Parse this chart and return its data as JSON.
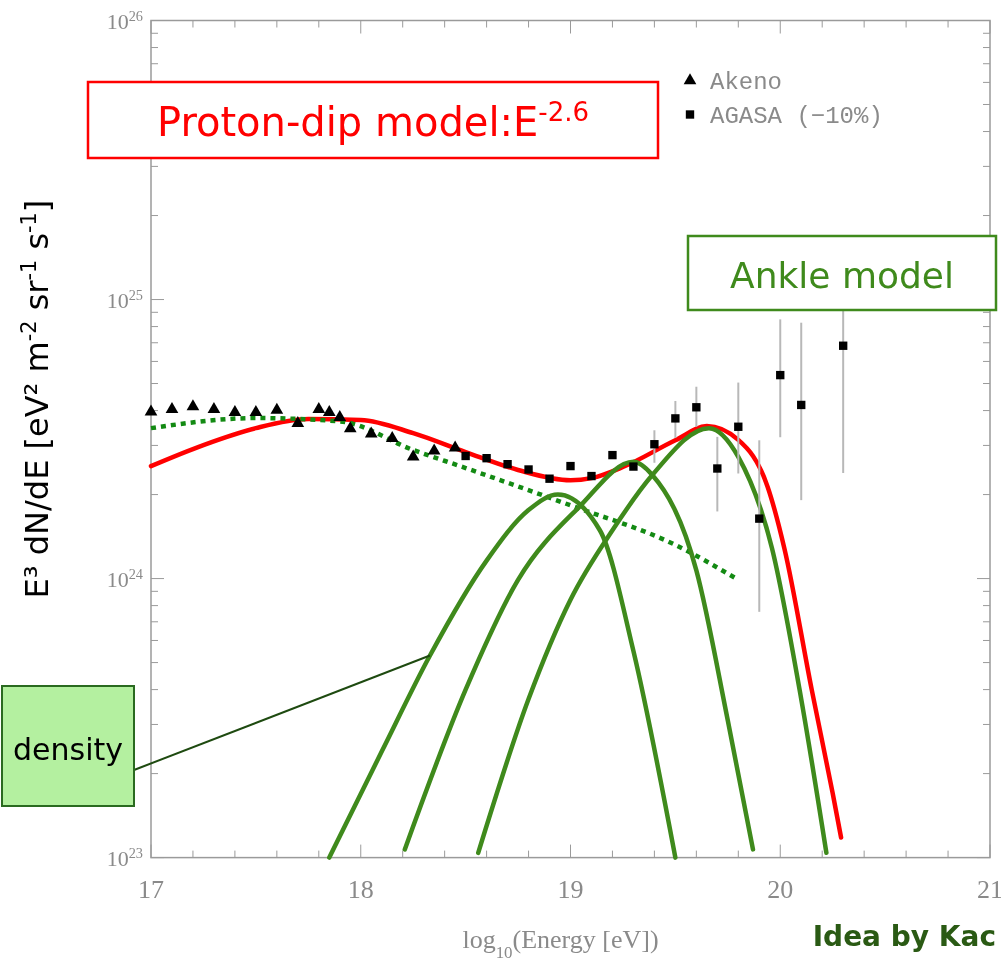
{
  "chart_data": {
    "type": "scatter",
    "xlabel": "log$_{10}$(Energy [eV])",
    "ylabel": "E³ dN/dE [eV² m$^{-2}$ sr$^{-1}$ s$^{-1}$]",
    "log": "y",
    "xlim": [
      17,
      21
    ],
    "ylim": [
      1e+23,
      1e+26
    ],
    "xticks": [
      17,
      {
        "value": 17.2,
        "label": null
      },
      {
        "value": 17.4,
        "label": null
      },
      {
        "value": 17.6,
        "label": null
      },
      {
        "value": 17.8,
        "label": null
      },
      18,
      {
        "value": 18.2,
        "label": null
      },
      {
        "value": 18.4,
        "label": null
      },
      {
        "value": 18.6,
        "label": null
      },
      {
        "value": 18.8,
        "label": null
      },
      19,
      {
        "value": 19.2,
        "label": null
      },
      {
        "value": 19.4,
        "label": null
      },
      {
        "value": 19.6,
        "label": null
      },
      {
        "value": 19.8,
        "label": null
      },
      20,
      {
        "value": 20.2,
        "label": null
      },
      {
        "value": 20.4,
        "label": null
      },
      {
        "value": 20.6,
        "label": null
      },
      {
        "value": 20.8,
        "label": null
      },
      21
    ],
    "yticks": [
      {
        "value": 1e+23,
        "label": "10$^{23}$"
      },
      {
        "value": 2e+23,
        "label": null
      },
      {
        "value": 3e+23,
        "label": null
      },
      {
        "value": 4e+23,
        "label": null
      },
      {
        "value": 5e+23,
        "label": null
      },
      {
        "value": 6e+23,
        "label": null
      },
      {
        "value": 7e+23,
        "label": null
      },
      {
        "value": 8e+23,
        "label": null
      },
      {
        "value": 9e+23,
        "label": null
      },
      {
        "value": 1e+24,
        "label": "10$^{24}$"
      },
      {
        "value": 2e+24,
        "label": null
      },
      {
        "value": 3e+24,
        "label": null
      },
      {
        "value": 4e+24,
        "label": null
      },
      {
        "value": 5e+24,
        "label": null
      },
      {
        "value": 6e+24,
        "label": null
      },
      {
        "value": 7e+24,
        "label": null
      },
      {
        "value": 8e+24,
        "label": null
      },
      {
        "value": 9e+24,
        "label": null
      },
      {
        "value": 1e+25,
        "label": "10$^{25}$"
      },
      {
        "value": 2e+25,
        "label": null
      },
      {
        "value": 3e+25,
        "label": null
      },
      {
        "value": 4e+25,
        "label": null
      },
      {
        "value": 5e+25,
        "label": null
      },
      {
        "value": 6e+25,
        "label": null
      },
      {
        "value": 7e+25,
        "label": null
      },
      {
        "value": 8e+25,
        "label": null
      },
      {
        "value": 9e+25,
        "label": null
      },
      {
        "value": 1e+26,
        "label": "10$^{26}$"
      }
    ],
    "legend": "top right",
    "series": [
      {
        "type": "line",
        "color": "#ff0000",
        "line_style": "solid",
        "marker": "none",
        "x": [
          17.0,
          17.25,
          17.5,
          17.75,
          18.0,
          18.25,
          18.5,
          18.75,
          19.0,
          19.1,
          19.25,
          19.5,
          19.65,
          19.8,
          19.94,
          20.02,
          20.15,
          20.25,
          20.29
        ],
        "values": [
          2.53e+24,
          3.01e+24,
          3.46e+24,
          3.73e+24,
          3.7e+24,
          3.32e+24,
          2.84e+24,
          2.45e+24,
          2.25e+24,
          2.29e+24,
          2.51e+24,
          3.13e+24,
          3.52e+24,
          3.14e+24,
          2.13e+24,
          1.28e+24,
          4e+23,
          1.7e+23,
          1.18e+23
        ]
      },
      {
        "type": "line",
        "color": "#138a13",
        "line_style": "dotted",
        "marker": "none",
        "x": [
          17.0,
          17.5,
          17.9,
          18.25,
          18.5,
          19.0,
          19.5,
          19.8
        ],
        "values": [
          3.46e+24,
          3.76e+24,
          3.66e+24,
          2.89e+24,
          2.49e+24,
          1.83e+24,
          1.32e+24,
          9.9e+23
        ]
      },
      {
        "type": "line",
        "color": "#3f8a1c",
        "line_style": "solid",
        "marker": "none",
        "x": [
          17.85,
          18.1,
          18.33,
          18.6,
          18.8,
          18.94,
          19.14,
          19.3,
          19.5
        ],
        "values": [
          1e+23,
          2.4e+23,
          5.3e+23,
          1.16e+24,
          1.76e+24,
          2e+24,
          1.49e+24,
          5.5e+23,
          1e+23
        ]
      },
      {
        "type": "line",
        "color": "#3f8a1c",
        "line_style": "solid",
        "marker": "none",
        "x": [
          18.21,
          18.5,
          18.75,
          19.04,
          19.3,
          19.39,
          19.6,
          19.75,
          19.87
        ],
        "values": [
          1.07e+23,
          4e+23,
          9.9e+23,
          1.8e+24,
          2.62e+24,
          2.35e+24,
          1.07e+24,
          3.1e+23,
          1.07e+23
        ]
      },
      {
        "type": "line",
        "color": "#3f8a1c",
        "line_style": "solid",
        "marker": "none",
        "x": [
          18.56,
          18.8,
          19.0,
          19.2,
          19.39,
          19.66,
          19.8,
          19.96,
          20.1,
          20.22
        ],
        "values": [
          1.04e+23,
          3.7e+23,
          8.4e+23,
          1.49e+24,
          2.35e+24,
          3.46e+24,
          2.73e+24,
          1.29e+24,
          3.7e+23,
          1.04e+23
        ]
      },
      {
        "name": "Akeno",
        "color": "#000000",
        "marker": "triangle",
        "x": [
          17.0,
          17.1,
          17.2,
          17.3,
          17.4,
          17.5,
          17.6,
          17.7,
          17.8,
          17.85,
          17.9,
          17.95,
          18.05,
          18.15,
          18.25,
          18.35,
          18.45
        ],
        "values": [
          3.96e+24,
          4.04e+24,
          4.13e+24,
          4.04e+24,
          3.94e+24,
          3.94e+24,
          4.02e+24,
          3.6e+24,
          4.04e+24,
          3.94e+24,
          3.78e+24,
          3.45e+24,
          3.3e+24,
          3.18e+24,
          2.73e+24,
          2.87e+24,
          2.94e+24
        ]
      },
      {
        "name": "AGASA (−10%)",
        "color": "#000000",
        "marker": "square",
        "x": [
          18.5,
          18.6,
          18.7,
          18.8,
          18.9,
          19.0,
          19.1,
          19.2,
          19.3,
          19.4,
          19.5,
          19.6,
          19.7,
          19.8,
          19.9,
          20.0,
          20.1,
          20.3
        ],
        "values": [
          2.75e+24,
          2.7e+24,
          2.57e+24,
          2.46e+24,
          2.28e+24,
          2.53e+24,
          2.33e+24,
          2.77e+24,
          2.52e+24,
          3.03e+24,
          3.75e+24,
          4.11e+24,
          2.48e+24,
          3.5e+24,
          1.64e+24,
          5.36e+24,
          4.19e+24,
          6.83e+24
        ],
        "errors": [
          null,
          null,
          null,
          null,
          null,
          null,
          null,
          null,
          null,
          [
            2.6e+24,
            3.4e+24
          ],
          [
            3.19e+24,
            4.33e+24
          ],
          [
            3.5e+24,
            4.87e+24
          ],
          [
            1.74e+24,
            3.22e+24
          ],
          [
            2.38e+24,
            5.04e+24
          ],
          [
            7.6e+23,
            3.13e+24
          ],
          [
            3.21e+24,
            8.49e+24
          ],
          [
            1.91e+24,
            8.26e+24
          ],
          [
            2.39e+24,
            9.17e+24
          ]
        ]
      }
    ],
    "annotations": [
      "Proton-dip model:E$^{-2.6}$",
      "Ankle model",
      {
        "text": "density",
        "x": 18.33,
        "y": 5.3e+23
      },
      "Idea by Kac"
    ]
  }
}
